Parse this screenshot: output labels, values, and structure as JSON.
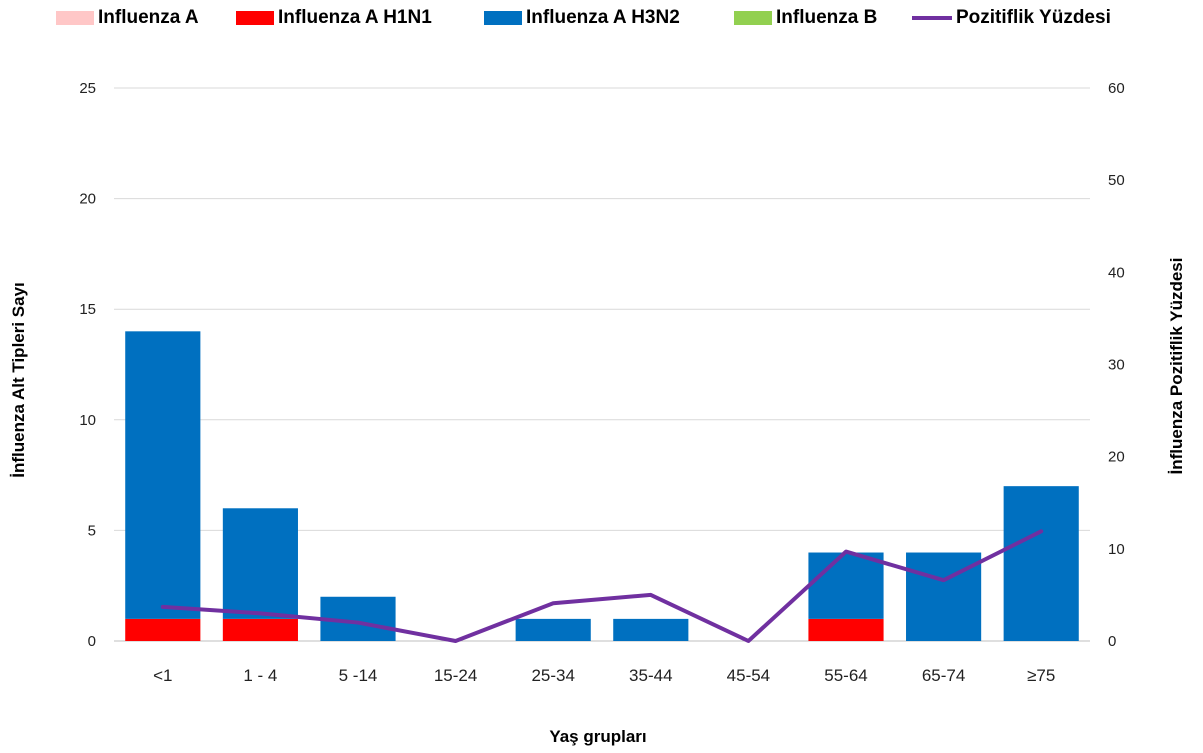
{
  "chart_data": {
    "type": "bar",
    "stacked": true,
    "categories": [
      "<1",
      "1 - 4",
      "5 -14",
      "15-24",
      "25-34",
      "35-44",
      "45-54",
      "55-64",
      "65-74",
      "≥75"
    ],
    "series": [
      {
        "name": "Influenza A",
        "type": "bar",
        "axis": "left",
        "color": "#ffc7c7",
        "values": [
          0,
          0,
          0,
          0,
          0,
          0,
          0,
          0,
          0,
          0
        ]
      },
      {
        "name": "Influenza A H1N1",
        "type": "bar",
        "axis": "left",
        "color": "#ff0000",
        "values": [
          1,
          1,
          0,
          0,
          0,
          0,
          0,
          1,
          0,
          0
        ]
      },
      {
        "name": "Influenza A H3N2",
        "type": "bar",
        "axis": "left",
        "color": "#0070c0",
        "values": [
          13,
          5,
          2,
          0,
          1,
          1,
          0,
          3,
          4,
          7
        ]
      },
      {
        "name": "Influenza B",
        "type": "bar",
        "axis": "left",
        "color": "#92d050",
        "values": [
          0,
          0,
          0,
          0,
          0,
          0,
          0,
          0,
          0,
          0
        ]
      },
      {
        "name": "Pozitiflik Yüzdesi",
        "type": "line",
        "axis": "right",
        "color": "#7030a0",
        "values": [
          3.7,
          3.0,
          2.0,
          0.0,
          4.1,
          5.0,
          0.0,
          9.7,
          6.6,
          11.9
        ]
      }
    ],
    "xlabel": "Yaş grupları",
    "ylabel": "İnfluenza Alt Tipleri Sayı",
    "y2label": "İnfluenza Pozitiflik Yüzdesi",
    "ylim": [
      0,
      25
    ],
    "y_ticks": [
      0,
      5,
      10,
      15,
      20,
      25
    ],
    "y2lim": [
      0,
      60
    ],
    "y2_ticks": [
      0,
      10,
      20,
      30,
      40,
      50,
      60
    ],
    "grid": true,
    "legend_position": "top"
  }
}
